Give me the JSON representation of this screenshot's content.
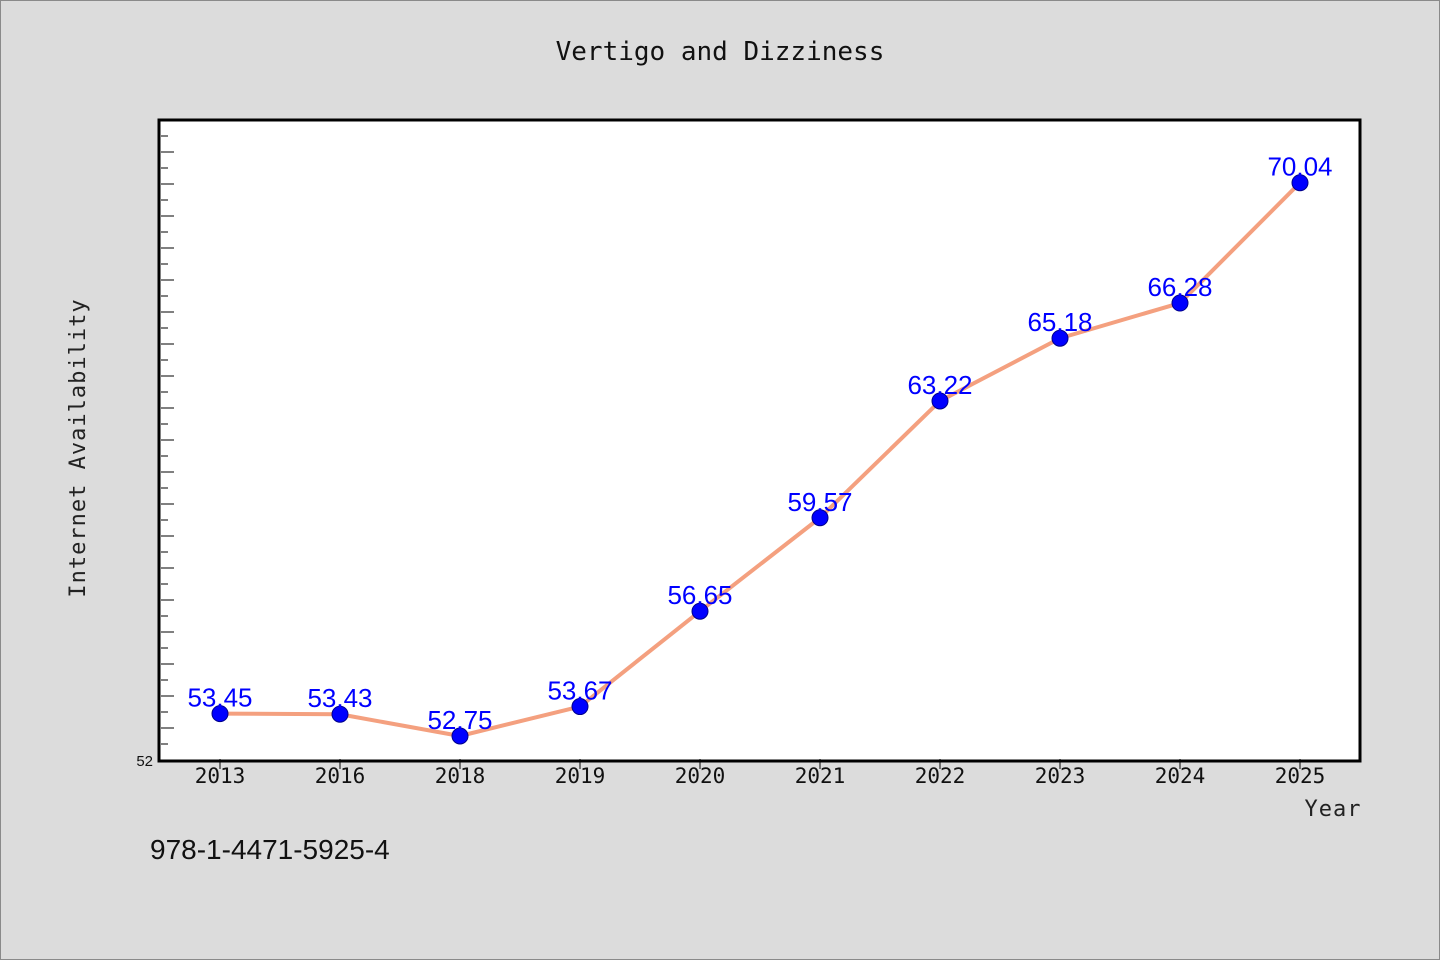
{
  "chart_data": {
    "type": "line",
    "title": "Vertigo and Dizziness",
    "xlabel": "Year",
    "ylabel": "Internet Availability",
    "categories": [
      "2013",
      "2016",
      "2018",
      "2019",
      "2020",
      "2021",
      "2022",
      "2023",
      "2024",
      "2025"
    ],
    "values": [
      53.45,
      53.43,
      52.75,
      53.67,
      56.65,
      59.57,
      63.22,
      65.18,
      66.28,
      70.04
    ],
    "data_labels": [
      "53.45",
      "53.43",
      "52.75",
      "53.67",
      "56.65",
      "59.57",
      "63.22",
      "65.18",
      "66.28",
      "70.04"
    ],
    "ylim": [
      52,
      72
    ],
    "yticks_labeled": [
      "52"
    ],
    "grid": false,
    "line_color": "#f4a07f",
    "marker_color": "#0000ff",
    "label_color": "#0000ff"
  },
  "footer_note": "978-1-4471-5925-4"
}
